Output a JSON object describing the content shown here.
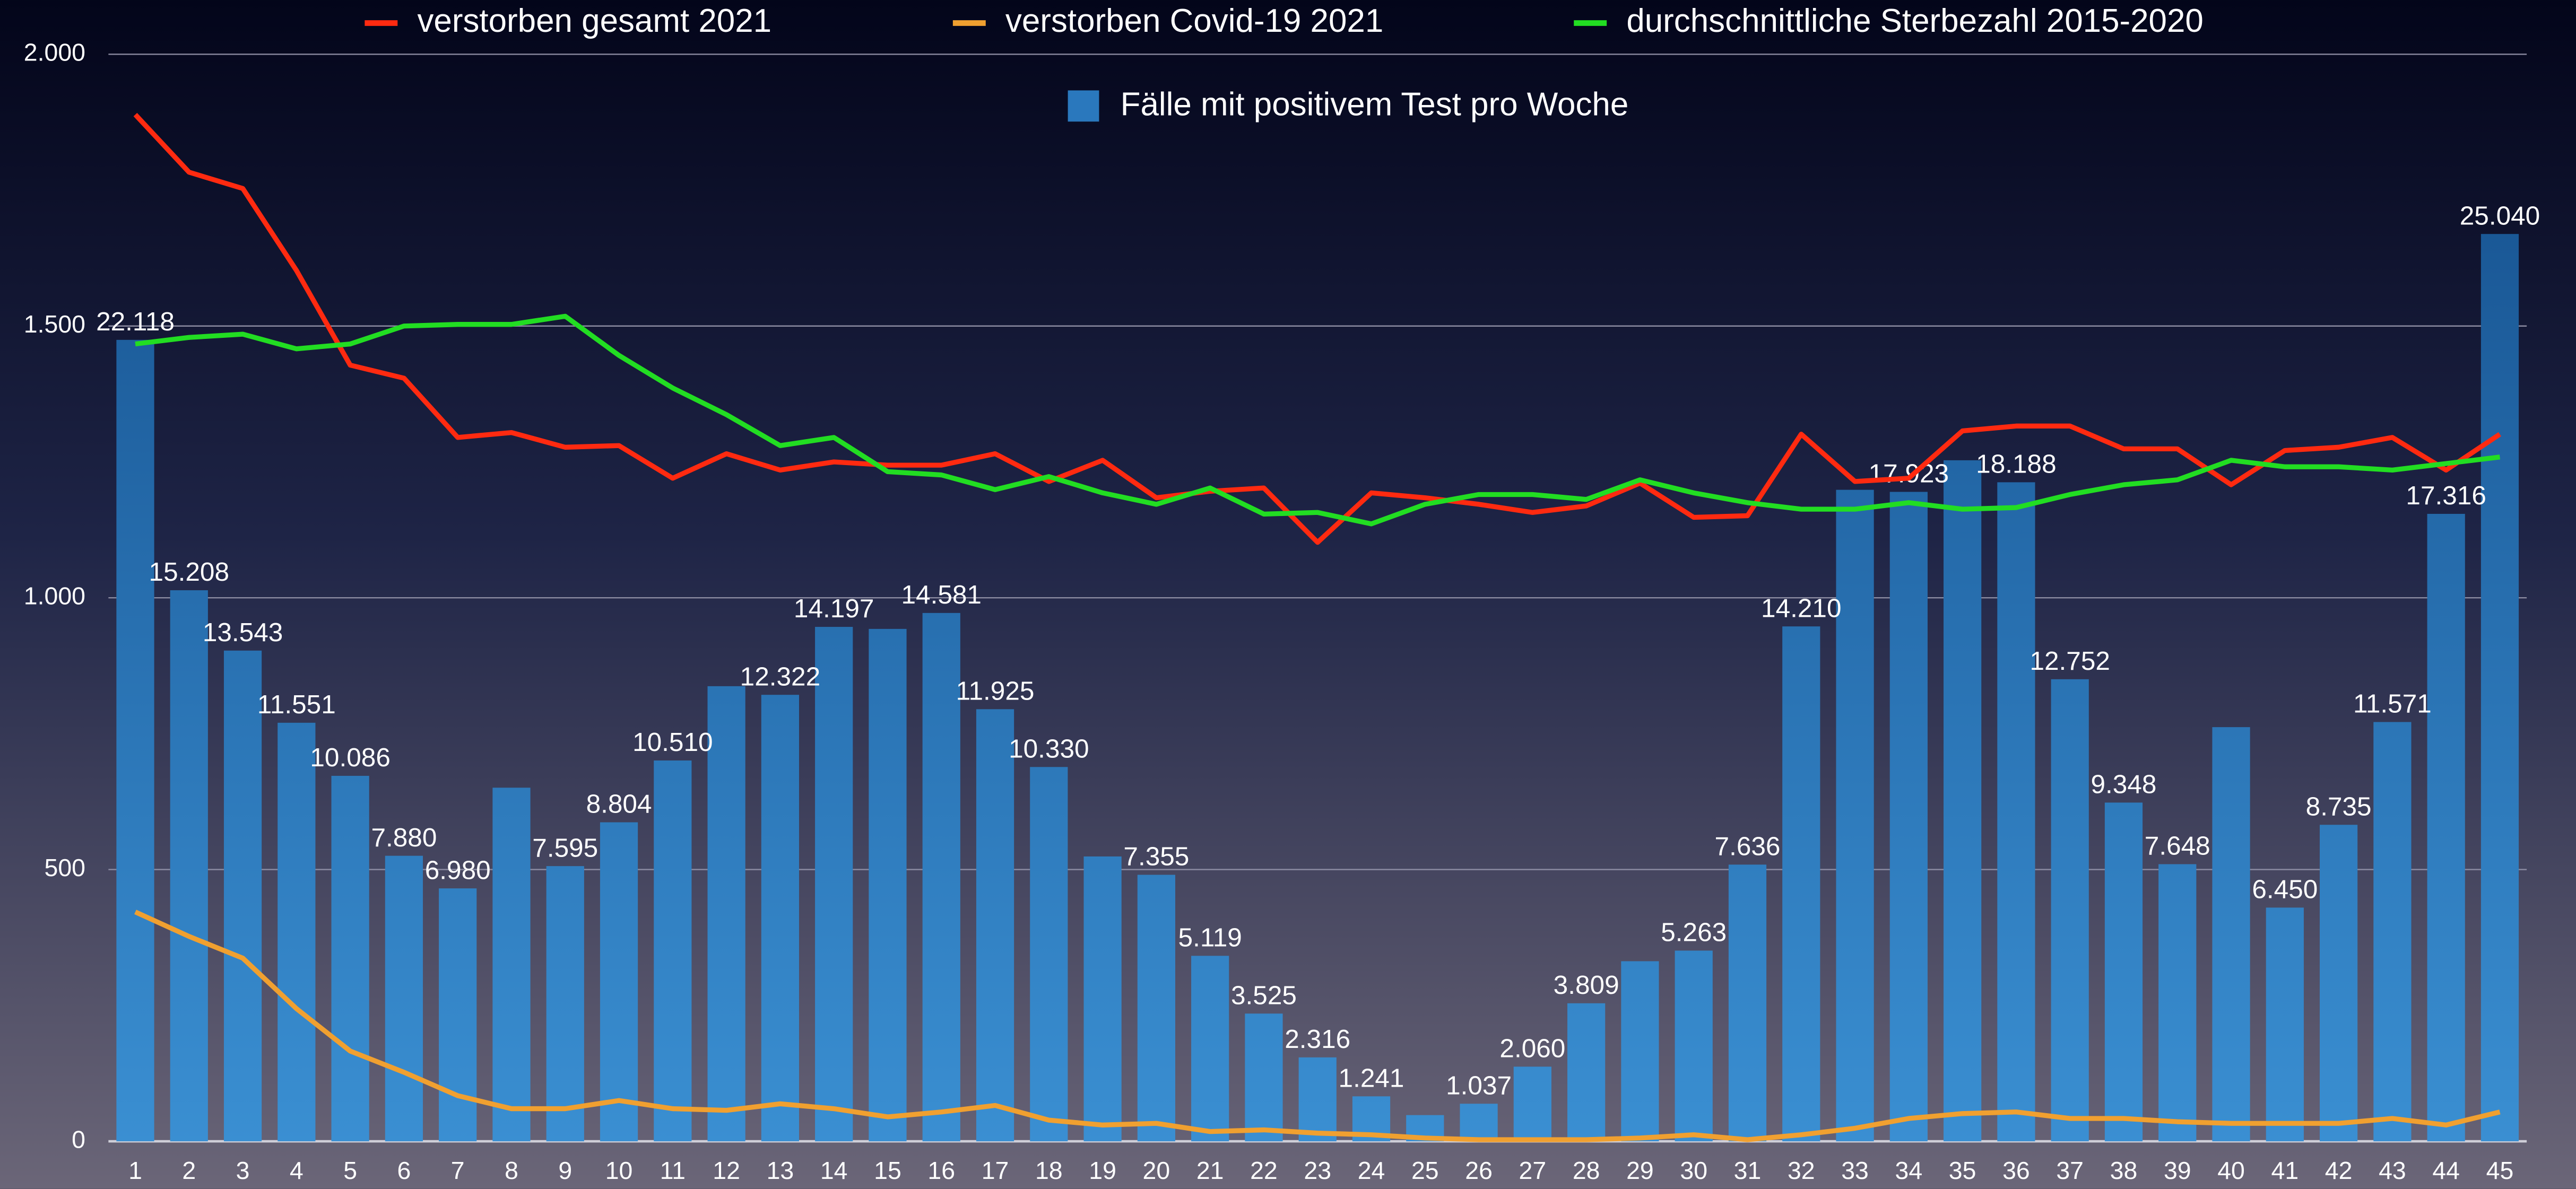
{
  "chart_data": {
    "type": "bar",
    "categories": [
      "1",
      "2",
      "3",
      "4",
      "5",
      "6",
      "7",
      "8",
      "9",
      "10",
      "11",
      "12",
      "13",
      "14",
      "15",
      "16",
      "17",
      "18",
      "19",
      "20",
      "21",
      "22",
      "23",
      "24",
      "25",
      "26",
      "27",
      "28",
      "29",
      "30",
      "31",
      "32",
      "33",
      "34",
      "35",
      "36",
      "37",
      "38",
      "39",
      "40",
      "41",
      "42",
      "43",
      "44",
      "45"
    ],
    "ylim": [
      0,
      2000
    ],
    "yticks": [
      {
        "value": 2000,
        "label": "2.000"
      },
      {
        "value": 1500,
        "label": "1.500"
      },
      {
        "value": 1000,
        "label": "1.000"
      },
      500,
      0
    ],
    "y2lim": [
      0,
      30000
    ],
    "grid": true,
    "series": [
      {
        "name": "Fälle mit positivem Test pro Woche",
        "type": "bar",
        "axis": "y2",
        "color": "#2a78bd",
        "values": [
          22118,
          15208,
          13543,
          11551,
          10086,
          7880,
          6980,
          9759,
          7595,
          8804,
          10510,
          12560,
          12322,
          14197,
          14141,
          14581,
          11925,
          10330,
          7861,
          7355,
          5119,
          3525,
          2316,
          1241,
          723,
          1037,
          2060,
          3809,
          4970,
          5263,
          7636,
          14210,
          17980,
          17923,
          18795,
          18188,
          12752,
          9348,
          7648,
          11430,
          6450,
          8735,
          11571,
          17316,
          25040
        ],
        "value_labels": [
          "22.118",
          "15.208",
          "13.543",
          "11.551",
          "10.086",
          "7.880",
          "6.980",
          null,
          "7.595",
          "8.804",
          "10.510",
          null,
          "12.322",
          "14.197",
          null,
          "14.581",
          "11.925",
          "10.330",
          null,
          "7.355",
          "5.119",
          "3.525",
          "2.316",
          "1.241",
          null,
          "1.037",
          "2.060",
          "3.809",
          null,
          "5.263",
          "7.636",
          "14.210",
          null,
          "17.923",
          null,
          "18.188",
          "12.752",
          "9.348",
          "7.648",
          null,
          "6.450",
          "8.735",
          "11.571",
          "17.316",
          "25.040"
        ]
      },
      {
        "name": "verstorben gesamt 2021",
        "type": "line",
        "color": "#ff2a10",
        "values": [
          1889,
          1783,
          1753,
          1602,
          1428,
          1404,
          1295,
          1304,
          1277,
          1280,
          1220,
          1265,
          1235,
          1250,
          1244,
          1244,
          1265,
          1214,
          1253,
          1184,
          1196,
          1202,
          1102,
          1193,
          1184,
          1172,
          1157,
          1169,
          1211,
          1148,
          1151,
          1301,
          1214,
          1220,
          1307,
          1316,
          1316,
          1274,
          1274,
          1208,
          1271,
          1277,
          1295,
          1235,
          1301
        ]
      },
      {
        "name": "verstorben Covid-19 2021",
        "type": "line",
        "color": "#f0a030",
        "values": [
          422,
          377,
          337,
          244,
          166,
          127,
          84,
          60,
          60,
          75,
          60,
          57,
          69,
          60,
          45,
          54,
          66,
          39,
          30,
          33,
          18,
          21,
          15,
          12,
          6,
          3,
          3,
          3,
          6,
          12,
          3,
          12,
          24,
          42,
          51,
          54,
          42,
          42,
          36,
          33,
          33,
          33,
          42,
          30,
          54
        ]
      },
      {
        "name": "durchschnittliche Sterbezahl 2015-2020",
        "type": "line",
        "color": "#22dd22",
        "values": [
          1467,
          1479,
          1485,
          1458,
          1467,
          1500,
          1503,
          1503,
          1518,
          1446,
          1386,
          1337,
          1280,
          1295,
          1232,
          1226,
          1199,
          1223,
          1193,
          1172,
          1202,
          1154,
          1157,
          1136,
          1172,
          1190,
          1190,
          1181,
          1217,
          1193,
          1175,
          1163,
          1163,
          1175,
          1163,
          1166,
          1190,
          1208,
          1217,
          1253,
          1241,
          1241,
          1235,
          1247,
          1259
        ]
      }
    ]
  }
}
